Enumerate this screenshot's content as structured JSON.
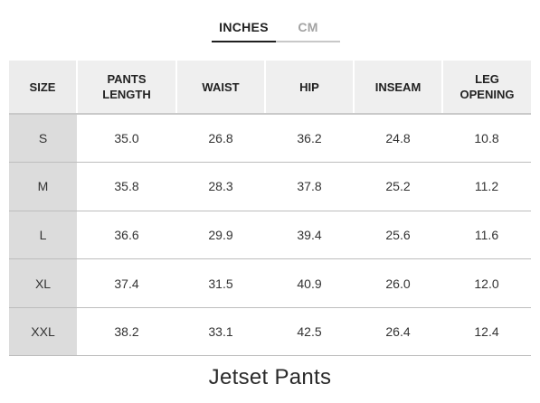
{
  "unit_tabs": [
    {
      "label": "INCHES",
      "active": true
    },
    {
      "label": "CM",
      "active": false
    }
  ],
  "table": {
    "headers": {
      "size": "SIZE",
      "pants_length": [
        "PANTS",
        "LENGTH"
      ],
      "waist": "WAIST",
      "hip": "HIP",
      "inseam": "INSEAM",
      "leg_opening": [
        "LEG",
        "OPENING"
      ]
    },
    "rows": [
      {
        "size": "S",
        "pants_length": "35.0",
        "waist": "26.8",
        "hip": "36.2",
        "inseam": "24.8",
        "leg_opening": "10.8"
      },
      {
        "size": "M",
        "pants_length": "35.8",
        "waist": "28.3",
        "hip": "37.8",
        "inseam": "25.2",
        "leg_opening": "11.2"
      },
      {
        "size": "L",
        "pants_length": "36.6",
        "waist": "29.9",
        "hip": "39.4",
        "inseam": "25.6",
        "leg_opening": "11.6"
      },
      {
        "size": "XL",
        "pants_length": "37.4",
        "waist": "31.5",
        "hip": "40.9",
        "inseam": "26.0",
        "leg_opening": "12.0"
      },
      {
        "size": "XXL",
        "pants_length": "38.2",
        "waist": "33.1",
        "hip": "42.5",
        "inseam": "26.4",
        "leg_opening": "12.4"
      }
    ]
  },
  "caption": "Jetset Pants",
  "colors": {
    "active_tab": "#1f1f1f",
    "inactive_tab": "#a3a3a3",
    "header_bg": "#efefef",
    "size_column_bg": "#dcdcdc",
    "row_divider": "#bdbdbd"
  }
}
